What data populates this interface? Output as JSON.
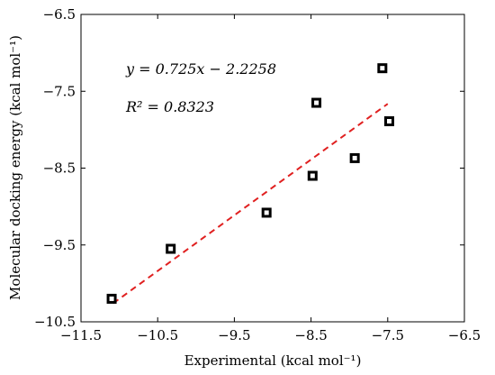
{
  "chart_data": {
    "type": "scatter",
    "xlabel": "Experimental (kcal mol⁻¹)",
    "ylabel": "Molecular docking energy (kcal mol⁻¹)",
    "xlim": [
      -11.5,
      -6.5
    ],
    "ylim": [
      -10.5,
      -6.5
    ],
    "x_ticks": [
      -11.5,
      -10.5,
      -9.5,
      -8.5,
      -7.5,
      -6.5
    ],
    "y_ticks": [
      -10.5,
      -9.5,
      -8.5,
      -7.5,
      -6.5
    ],
    "x_tick_labels": [
      "−11.5",
      "−10.5",
      "−9.5",
      "−8.5",
      "−7.5",
      "−6.5"
    ],
    "y_tick_labels": [
      "−10.5",
      "−9.5",
      "−8.5",
      "−7.5",
      "−6.5"
    ],
    "grid": false,
    "series": [
      {
        "points": [
          {
            "x": -11.1,
            "y": -10.2
          },
          {
            "x": -10.33,
            "y": -9.55
          },
          {
            "x": -9.08,
            "y": -9.08
          },
          {
            "x": -8.48,
            "y": -8.6
          },
          {
            "x": -8.43,
            "y": -7.65
          },
          {
            "x": -7.93,
            "y": -8.37
          },
          {
            "x": -7.57,
            "y": -7.2
          },
          {
            "x": -7.48,
            "y": -7.89
          }
        ],
        "marker": "square",
        "color": "#000000"
      }
    ],
    "fit_line": {
      "slope": 0.725,
      "intercept": -2.2258,
      "x_range": [
        -11.08,
        -7.5
      ],
      "color": "#e02020",
      "style": "dashed"
    },
    "annotations": [
      {
        "text": "y = 0.725x − 2.2258"
      },
      {
        "text": "R² = 0.8323"
      }
    ]
  }
}
